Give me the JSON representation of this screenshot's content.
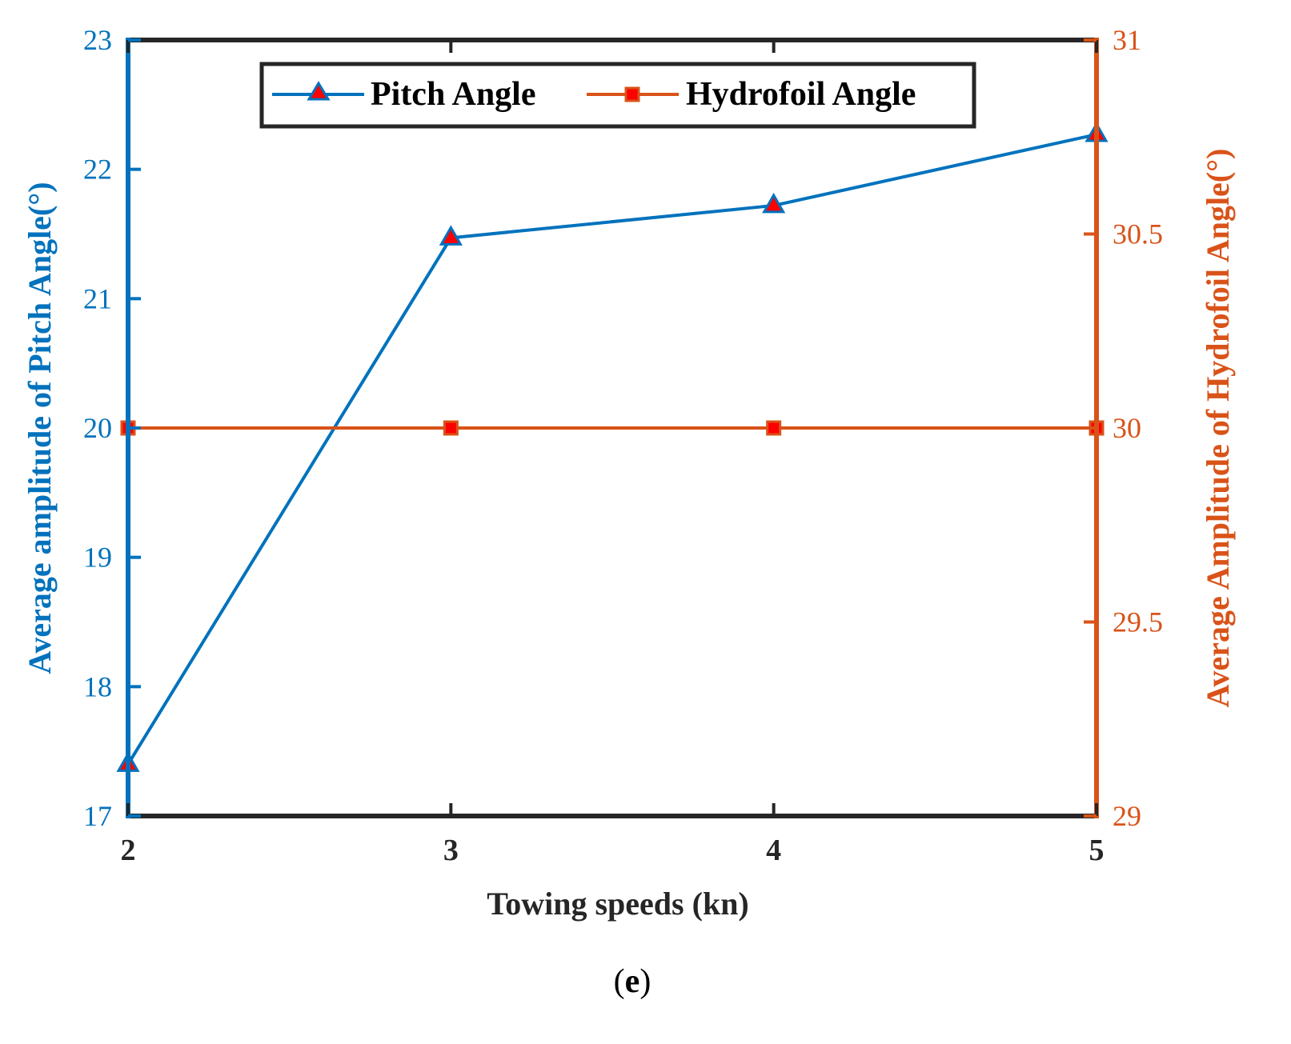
{
  "chart_data": {
    "type": "line",
    "x": [
      2,
      3,
      4,
      5
    ],
    "xlabel": "Towing speeds (kn)",
    "xlim": [
      2,
      5
    ],
    "x_ticks": [
      "2",
      "3",
      "4",
      "5"
    ],
    "series": [
      {
        "name": "Pitch Angle",
        "axis": "left",
        "marker": "triangle",
        "color": "#0072BD",
        "values": [
          17.4,
          21.47,
          21.72,
          22.27
        ]
      },
      {
        "name": "Hydrofoil Angle",
        "axis": "right",
        "marker": "square",
        "color": "#D95319",
        "values": [
          30,
          30,
          30,
          30
        ]
      }
    ],
    "ylabel_left": "Average amplitude of Pitch Angle(°)",
    "ylim_left": [
      17,
      23
    ],
    "y_ticks_left": [
      "17",
      "18",
      "19",
      "20",
      "21",
      "22",
      "23"
    ],
    "ylabel_right": "Average Amplitude of Hydrofoil Angle(°)",
    "ylim_right": [
      29,
      31
    ],
    "y_ticks_right": [
      "29",
      "29.5",
      "30",
      "30.5",
      "31"
    ],
    "legend": {
      "placement": "top-center",
      "entries": [
        "Pitch Angle",
        "Hydrofoil Angle"
      ]
    },
    "grid": false,
    "marker_inner_color": "#FF0000"
  },
  "caption": {
    "open": "(",
    "letter": "e",
    "close": ")"
  }
}
